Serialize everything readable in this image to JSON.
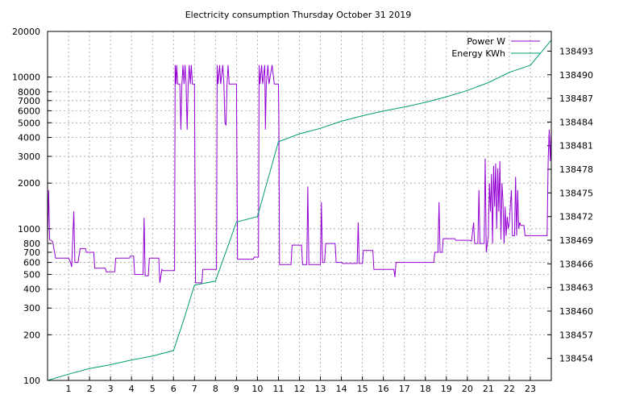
{
  "chart_data": {
    "type": "line",
    "title": "Electricity consumption Thursday October 31 2019",
    "x": {
      "range": [
        0,
        24
      ],
      "ticks": [
        1,
        2,
        3,
        4,
        5,
        6,
        7,
        8,
        9,
        10,
        11,
        12,
        13,
        14,
        15,
        16,
        17,
        18,
        19,
        20,
        21,
        22,
        23
      ]
    },
    "y_left": {
      "scale": "log",
      "range": [
        100,
        20000
      ],
      "ticks": [
        100,
        200,
        300,
        400,
        500,
        600,
        700,
        800,
        1000,
        2000,
        3000,
        4000,
        5000,
        6000,
        7000,
        8000,
        10000,
        20000
      ]
    },
    "y_right": {
      "range": [
        138451.2,
        138495.5
      ],
      "ticks": [
        138454,
        138457,
        138460,
        138463,
        138466,
        138469,
        138472,
        138475,
        138478,
        138481,
        138484,
        138487,
        138490,
        138493
      ]
    },
    "grid": true,
    "legend_position": "top-right",
    "series": [
      {
        "name": "Power W",
        "axis": "left",
        "color": "#9400d3",
        "points": [
          [
            0.0,
            820
          ],
          [
            0.05,
            1800
          ],
          [
            0.1,
            850
          ],
          [
            0.25,
            820
          ],
          [
            0.38,
            640
          ],
          [
            1.0,
            640
          ],
          [
            1.1,
            600
          ],
          [
            1.15,
            560
          ],
          [
            1.25,
            1300
          ],
          [
            1.3,
            600
          ],
          [
            1.45,
            600
          ],
          [
            1.55,
            740
          ],
          [
            1.8,
            740
          ],
          [
            1.85,
            700
          ],
          [
            2.2,
            700
          ],
          [
            2.25,
            550
          ],
          [
            2.75,
            550
          ],
          [
            2.8,
            520
          ],
          [
            3.2,
            520
          ],
          [
            3.25,
            640
          ],
          [
            3.9,
            640
          ],
          [
            3.95,
            660
          ],
          [
            4.1,
            660
          ],
          [
            4.15,
            500
          ],
          [
            4.55,
            500
          ],
          [
            4.6,
            1180
          ],
          [
            4.65,
            490
          ],
          [
            4.8,
            490
          ],
          [
            4.85,
            640
          ],
          [
            5.3,
            640
          ],
          [
            5.35,
            440
          ],
          [
            5.45,
            540
          ],
          [
            5.5,
            530
          ],
          [
            6.05,
            530
          ],
          [
            6.08,
            12000
          ],
          [
            6.12,
            9000
          ],
          [
            6.15,
            12000
          ],
          [
            6.2,
            9000
          ],
          [
            6.3,
            9000
          ],
          [
            6.35,
            4500
          ],
          [
            6.4,
            9000
          ],
          [
            6.45,
            12000
          ],
          [
            6.5,
            9000
          ],
          [
            6.55,
            12000
          ],
          [
            6.6,
            9000
          ],
          [
            6.65,
            4500
          ],
          [
            6.7,
            9000
          ],
          [
            6.75,
            12000
          ],
          [
            6.8,
            9000
          ],
          [
            6.85,
            12000
          ],
          [
            6.9,
            9000
          ],
          [
            7.0,
            9000
          ],
          [
            7.05,
            440
          ],
          [
            7.35,
            440
          ],
          [
            7.4,
            540
          ],
          [
            8.05,
            540
          ],
          [
            8.08,
            12000
          ],
          [
            8.12,
            9000
          ],
          [
            8.2,
            12000
          ],
          [
            8.25,
            9000
          ],
          [
            8.35,
            12000
          ],
          [
            8.4,
            9000
          ],
          [
            8.45,
            5000
          ],
          [
            8.5,
            4800
          ],
          [
            8.55,
            9000
          ],
          [
            8.6,
            12000
          ],
          [
            8.65,
            9000
          ],
          [
            8.8,
            9000
          ],
          [
            9.0,
            9000
          ],
          [
            9.05,
            630
          ],
          [
            9.8,
            630
          ],
          [
            9.85,
            650
          ],
          [
            10.05,
            650
          ],
          [
            10.08,
            12000
          ],
          [
            10.12,
            9000
          ],
          [
            10.2,
            12000
          ],
          [
            10.25,
            9000
          ],
          [
            10.35,
            12000
          ],
          [
            10.38,
            4500
          ],
          [
            10.42,
            9000
          ],
          [
            10.5,
            12000
          ],
          [
            10.55,
            9000
          ],
          [
            10.7,
            12000
          ],
          [
            10.8,
            9000
          ],
          [
            10.95,
            9000
          ],
          [
            11.0,
            9000
          ],
          [
            11.02,
            5200
          ],
          [
            11.05,
            580
          ],
          [
            11.6,
            580
          ],
          [
            11.65,
            780
          ],
          [
            12.1,
            780
          ],
          [
            12.15,
            580
          ],
          [
            12.35,
            580
          ],
          [
            12.4,
            1900
          ],
          [
            12.45,
            580
          ],
          [
            13.0,
            580
          ],
          [
            13.05,
            1500
          ],
          [
            13.1,
            600
          ],
          [
            13.2,
            600
          ],
          [
            13.25,
            800
          ],
          [
            13.7,
            800
          ],
          [
            13.75,
            600
          ],
          [
            14.0,
            600
          ],
          [
            14.05,
            590
          ],
          [
            14.75,
            590
          ],
          [
            14.8,
            1100
          ],
          [
            14.85,
            590
          ],
          [
            15.0,
            590
          ],
          [
            15.05,
            720
          ],
          [
            15.5,
            720
          ],
          [
            15.55,
            540
          ],
          [
            16.5,
            540
          ],
          [
            16.55,
            480
          ],
          [
            16.6,
            600
          ],
          [
            18.4,
            600
          ],
          [
            18.45,
            700
          ],
          [
            18.6,
            700
          ],
          [
            18.65,
            1500
          ],
          [
            18.7,
            700
          ],
          [
            18.8,
            700
          ],
          [
            18.85,
            860
          ],
          [
            19.4,
            860
          ],
          [
            19.45,
            840
          ],
          [
            20.1,
            840
          ],
          [
            20.2,
            830
          ],
          [
            20.3,
            1100
          ],
          [
            20.35,
            800
          ],
          [
            20.5,
            800
          ],
          [
            20.55,
            1800
          ],
          [
            20.6,
            800
          ],
          [
            20.8,
            800
          ],
          [
            20.85,
            2900
          ],
          [
            20.9,
            700
          ],
          [
            21.0,
            900
          ],
          [
            21.05,
            2000
          ],
          [
            21.1,
            1300
          ],
          [
            21.15,
            2300
          ],
          [
            21.2,
            800
          ],
          [
            21.25,
            2600
          ],
          [
            21.3,
            1400
          ],
          [
            21.35,
            2700
          ],
          [
            21.4,
            1000
          ],
          [
            21.45,
            2500
          ],
          [
            21.5,
            1300
          ],
          [
            21.55,
            2800
          ],
          [
            21.6,
            850
          ],
          [
            21.65,
            2000
          ],
          [
            21.7,
            1500
          ],
          [
            21.75,
            800
          ],
          [
            21.8,
            1400
          ],
          [
            21.85,
            900
          ],
          [
            21.9,
            1200
          ],
          [
            21.95,
            1000
          ],
          [
            22.0,
            1100
          ],
          [
            22.1,
            1800
          ],
          [
            22.15,
            900
          ],
          [
            22.25,
            900
          ],
          [
            22.3,
            2200
          ],
          [
            22.35,
            900
          ],
          [
            22.4,
            1800
          ],
          [
            22.45,
            1000
          ],
          [
            22.5,
            1100
          ],
          [
            22.55,
            1050
          ],
          [
            22.7,
            1050
          ],
          [
            22.75,
            900
          ],
          [
            23.8,
            900
          ],
          [
            23.85,
            2800
          ],
          [
            23.9,
            4500
          ],
          [
            23.95,
            2800
          ],
          [
            24.0,
            4500
          ]
        ]
      },
      {
        "name": "Energy KWh",
        "axis": "right",
        "color": "#009e73",
        "points": [
          [
            0.0,
            138451.2
          ],
          [
            1.0,
            138452.0
          ],
          [
            2.0,
            138452.7
          ],
          [
            3.0,
            138453.2
          ],
          [
            4.0,
            138453.8
          ],
          [
            5.0,
            138454.3
          ],
          [
            6.0,
            138455.0
          ],
          [
            6.5,
            138459.0
          ],
          [
            7.0,
            138463.3
          ],
          [
            8.0,
            138463.8
          ],
          [
            9.0,
            138471.3
          ],
          [
            10.0,
            138472.0
          ],
          [
            11.0,
            138481.5
          ],
          [
            12.0,
            138482.5
          ],
          [
            13.0,
            138483.2
          ],
          [
            14.0,
            138484.1
          ],
          [
            15.0,
            138484.8
          ],
          [
            16.0,
            138485.4
          ],
          [
            17.0,
            138485.9
          ],
          [
            18.0,
            138486.5
          ],
          [
            19.0,
            138487.2
          ],
          [
            20.0,
            138488.0
          ],
          [
            21.0,
            138489.0
          ],
          [
            22.0,
            138490.3
          ],
          [
            23.0,
            138491.2
          ],
          [
            24.0,
            138494.4
          ]
        ]
      }
    ]
  }
}
